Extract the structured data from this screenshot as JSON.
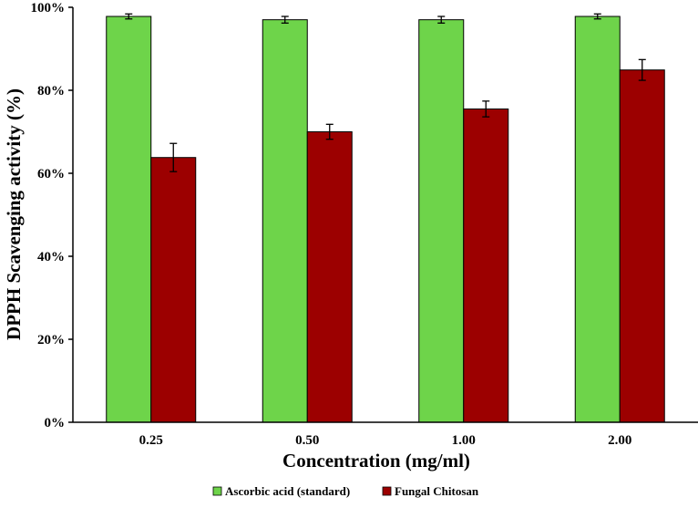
{
  "chart_data": {
    "type": "bar",
    "title": "",
    "xlabel": "Concentration (mg/ml)",
    "ylabel": "DPPH Scavenging activity (%)",
    "categories": [
      "0.25",
      "0.50",
      "1.00",
      "2.00"
    ],
    "ylim": [
      0,
      100
    ],
    "yticks": [
      0,
      20,
      40,
      60,
      80,
      100
    ],
    "ytick_labels": [
      "0%",
      "20%",
      "40%",
      "60%",
      "80%",
      "100%"
    ],
    "legend_position": "bottom",
    "grid": false,
    "series": [
      {
        "name": "Ascorbic acid (standard)",
        "color": "#6ed44a",
        "values": [
          97.8,
          97.0,
          97.0,
          97.8
        ],
        "errors": [
          0.6,
          0.8,
          0.8,
          0.6
        ]
      },
      {
        "name": "Fungal Chitosan",
        "color": "#9c0000",
        "values": [
          63.8,
          70.0,
          75.5,
          84.9
        ],
        "errors": [
          3.4,
          1.8,
          1.9,
          2.5
        ]
      }
    ]
  }
}
